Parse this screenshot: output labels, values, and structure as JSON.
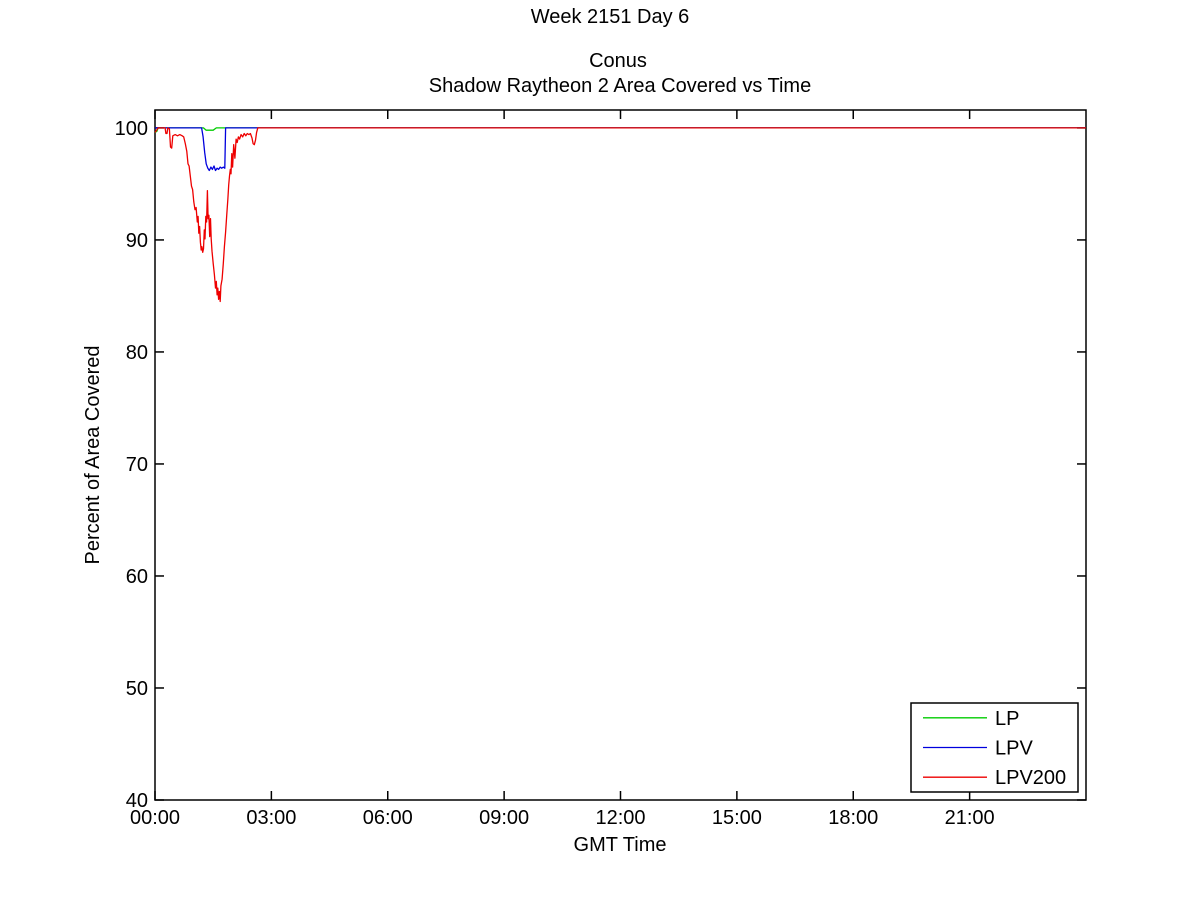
{
  "figure": {
    "background": "#ffffff",
    "axis_color": "#000000"
  },
  "chart_data": {
    "type": "line",
    "suptitle": "Week 2151 Day 6",
    "title": "Conus",
    "subtitle": "Shadow Raytheon 2 Area Covered vs Time",
    "xlabel": "GMT Time",
    "ylabel": "Percent of Area Covered",
    "xlim": [
      0,
      24
    ],
    "ylim": [
      40,
      101.6
    ],
    "grid": false,
    "x_ticks": {
      "values": [
        0,
        3,
        6,
        9,
        12,
        15,
        18,
        21
      ],
      "labels": [
        "00:00",
        "03:00",
        "06:00",
        "09:00",
        "12:00",
        "15:00",
        "18:00",
        "21:00"
      ]
    },
    "y_ticks": {
      "values": [
        40,
        50,
        60,
        70,
        80,
        90,
        100
      ],
      "labels": [
        "40",
        "50",
        "60",
        "70",
        "80",
        "90",
        "100"
      ]
    },
    "legend": {
      "position": "bottom-right"
    },
    "series": [
      {
        "name": "LP",
        "color": "#00cc00",
        "points": [
          [
            0,
            99.6
          ],
          [
            0.05,
            99.7
          ],
          [
            0.08,
            100
          ],
          [
            1.25,
            100
          ],
          [
            1.32,
            99.8
          ],
          [
            1.42,
            99.8
          ],
          [
            1.5,
            99.8
          ],
          [
            1.58,
            100
          ],
          [
            24,
            100
          ]
        ]
      },
      {
        "name": "LPV",
        "color": "#0000dd",
        "points": [
          [
            0,
            100
          ],
          [
            1.2,
            100
          ],
          [
            1.24,
            99.2
          ],
          [
            1.28,
            97.8
          ],
          [
            1.32,
            96.8
          ],
          [
            1.36,
            96.4
          ],
          [
            1.4,
            96.2
          ],
          [
            1.44,
            96.5
          ],
          [
            1.48,
            96.3
          ],
          [
            1.52,
            96.6
          ],
          [
            1.56,
            96.2
          ],
          [
            1.6,
            96.4
          ],
          [
            1.64,
            96.3
          ],
          [
            1.68,
            96.5
          ],
          [
            1.72,
            96.4
          ],
          [
            1.76,
            96.5
          ],
          [
            1.8,
            96.4
          ],
          [
            1.82,
            100
          ],
          [
            24,
            100
          ]
        ]
      },
      {
        "name": "LPV200",
        "color": "#ee0000",
        "points": [
          [
            0,
            99.6
          ],
          [
            0.04,
            99.8
          ],
          [
            0.08,
            100
          ],
          [
            0.26,
            100
          ],
          [
            0.28,
            99.5
          ],
          [
            0.31,
            99.5
          ],
          [
            0.33,
            100
          ],
          [
            0.37,
            99.9
          ],
          [
            0.4,
            98.3
          ],
          [
            0.43,
            98.2
          ],
          [
            0.46,
            99.3
          ],
          [
            0.52,
            99.4
          ],
          [
            0.58,
            99.3
          ],
          [
            0.64,
            99.4
          ],
          [
            0.7,
            99.3
          ],
          [
            0.74,
            99.2
          ],
          [
            0.78,
            98.6
          ],
          [
            0.82,
            97.9
          ],
          [
            0.85,
            96.8
          ],
          [
            0.88,
            96.6
          ],
          [
            0.91,
            95.7
          ],
          [
            0.94,
            94.8
          ],
          [
            0.97,
            94.5
          ],
          [
            1.0,
            93.4
          ],
          [
            1.03,
            92.7
          ],
          [
            1.06,
            92.9
          ],
          [
            1.09,
            91.6
          ],
          [
            1.11,
            92.1
          ],
          [
            1.13,
            90.6
          ],
          [
            1.15,
            91.2
          ],
          [
            1.17,
            89.8
          ],
          [
            1.19,
            89.1
          ],
          [
            1.21,
            89.4
          ],
          [
            1.23,
            88.9
          ],
          [
            1.25,
            89.2
          ],
          [
            1.27,
            90.9
          ],
          [
            1.29,
            90.1
          ],
          [
            1.31,
            92.1
          ],
          [
            1.33,
            91.6
          ],
          [
            1.35,
            94.4
          ],
          [
            1.37,
            91.9
          ],
          [
            1.39,
            92.2
          ],
          [
            1.41,
            90.3
          ],
          [
            1.43,
            91.9
          ],
          [
            1.45,
            90.1
          ],
          [
            1.47,
            89.0
          ],
          [
            1.5,
            87.9
          ],
          [
            1.53,
            86.9
          ],
          [
            1.56,
            85.7
          ],
          [
            1.58,
            86.3
          ],
          [
            1.6,
            85.1
          ],
          [
            1.62,
            85.7
          ],
          [
            1.64,
            84.7
          ],
          [
            1.66,
            85.4
          ],
          [
            1.68,
            84.5
          ],
          [
            1.7,
            85.9
          ],
          [
            1.73,
            86.5
          ],
          [
            1.76,
            87.9
          ],
          [
            1.79,
            89.4
          ],
          [
            1.82,
            90.7
          ],
          [
            1.85,
            92.3
          ],
          [
            1.88,
            93.7
          ],
          [
            1.9,
            94.9
          ],
          [
            1.92,
            95.7
          ],
          [
            1.94,
            96.3
          ],
          [
            1.96,
            95.9
          ],
          [
            1.98,
            97.7
          ],
          [
            2.0,
            96.5
          ],
          [
            2.03,
            98.5
          ],
          [
            2.06,
            97.3
          ],
          [
            2.09,
            99.0
          ],
          [
            2.12,
            98.7
          ],
          [
            2.15,
            99.2
          ],
          [
            2.18,
            99.0
          ],
          [
            2.22,
            99.4
          ],
          [
            2.26,
            99.2
          ],
          [
            2.3,
            99.5
          ],
          [
            2.34,
            99.3
          ],
          [
            2.38,
            99.5
          ],
          [
            2.42,
            99.4
          ],
          [
            2.46,
            99.5
          ],
          [
            2.5,
            99.1
          ],
          [
            2.53,
            98.6
          ],
          [
            2.56,
            98.5
          ],
          [
            2.59,
            98.9
          ],
          [
            2.62,
            99.6
          ],
          [
            2.65,
            100
          ],
          [
            24,
            100
          ]
        ]
      }
    ]
  }
}
